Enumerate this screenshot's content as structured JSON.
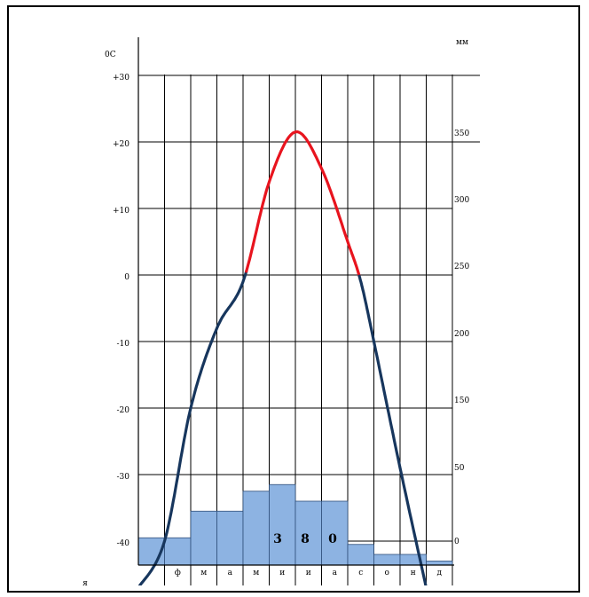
{
  "chart_data": {
    "type": "climatogram",
    "left_axis": {
      "unit_label": "0С",
      "ticks": [
        {
          "label": "+30",
          "value": 30
        },
        {
          "label": "+20",
          "value": 20
        },
        {
          "label": "+10",
          "value": 10
        },
        {
          "label": "0",
          "value": 0
        },
        {
          "label": "-10",
          "value": -10
        },
        {
          "label": "-20",
          "value": -20
        },
        {
          "label": "-30",
          "value": -30
        },
        {
          "label": "-40",
          "value": -40
        }
      ],
      "ylim": [
        -43,
        30
      ]
    },
    "right_axis": {
      "unit_label": "мм",
      "ticks": [
        {
          "label": "350",
          "value": 350
        },
        {
          "label": "300",
          "value": 300
        },
        {
          "label": "250",
          "value": 250
        },
        {
          "label": "200",
          "value": 200
        },
        {
          "label": "150",
          "value": 150
        },
        {
          "label": "50",
          "value": 50
        },
        {
          "label": "0",
          "value": 0
        }
      ]
    },
    "months": [
      "я",
      "ф",
      "м",
      "а",
      "м",
      "и",
      "и",
      "а",
      "с",
      "о",
      "н",
      "д"
    ],
    "precipitation": {
      "values_on_temp_scale": [
        -39.5,
        -39.5,
        -35.5,
        -35.5,
        -32.5,
        -31.5,
        -34,
        -34,
        -40.5,
        -42,
        -42,
        -43
      ],
      "color": "#8db3e2",
      "annual_total_digits": [
        "3",
        "8",
        "0"
      ]
    },
    "temperature": {
      "points": [
        {
          "x": -0.5,
          "y": -47
        },
        {
          "x": 0.5,
          "y": -40
        },
        {
          "x": 1.5,
          "y": -20
        },
        {
          "x": 2.5,
          "y": -8
        },
        {
          "x": 3.5,
          "y": -1
        },
        {
          "x": 4.5,
          "y": 14
        },
        {
          "x": 5.5,
          "y": 21.5
        },
        {
          "x": 6.5,
          "y": 16
        },
        {
          "x": 7.5,
          "y": 5
        },
        {
          "x": 8.0,
          "y": -1
        },
        {
          "x": 8.5,
          "y": -10
        },
        {
          "x": 9.5,
          "y": -29
        },
        {
          "x": 10.5,
          "y": -47
        }
      ],
      "warm_color": "#e8141e",
      "cold_color": "#17365d"
    }
  }
}
